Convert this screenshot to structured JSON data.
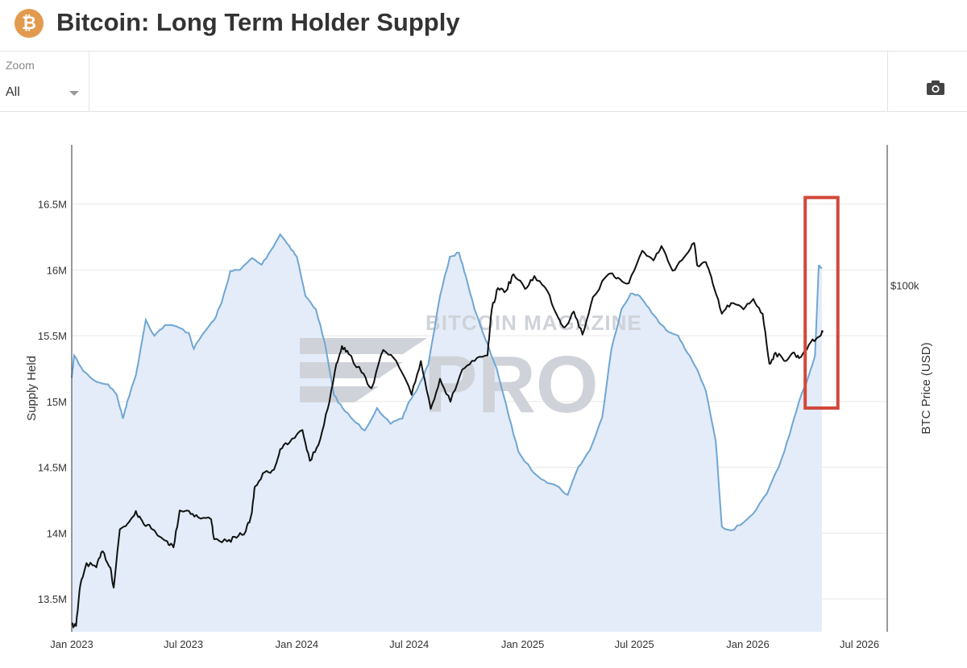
{
  "header": {
    "title": "Bitcoin: Long Term Holder Supply",
    "logo_icon": "bitcoin-logo-icon",
    "logo_glyph": "₿"
  },
  "toolbar": {
    "zoom_label": "Zoom",
    "zoom_value": "All",
    "camera_icon": "camera-icon"
  },
  "watermark": {
    "line1": "BITCOIN MAGAZINE",
    "line2": "PRO"
  },
  "colors": {
    "supply": "#6fa6d4",
    "supply_fill": "#e3ecf8",
    "price": "#111111",
    "highlight": "#d2483a",
    "grid": "#e6e6e6"
  },
  "chart_data": {
    "type": "line",
    "title": "Bitcoin: Long Term Holder Supply",
    "ylabel": "Supply Held",
    "y2label": "BTC Price (USD)",
    "xlim": [
      "2023-01-01",
      "2026-08-15"
    ],
    "ylim": [
      13250000,
      16950000
    ],
    "x_ticks": [
      "Jan 2023",
      "Jul 2023",
      "Jan 2024",
      "Jul 2024",
      "Jan 2025",
      "Jul 2025",
      "Jan 2026",
      "Jul 2026"
    ],
    "y_ticks": [
      {
        "value": 13500000,
        "label": "13.5M"
      },
      {
        "value": 14000000,
        "label": "14M"
      },
      {
        "value": 14500000,
        "label": "14.5M"
      },
      {
        "value": 15000000,
        "label": "15M"
      },
      {
        "value": 15500000,
        "label": "15.5M"
      },
      {
        "value": 16000000,
        "label": "16M"
      },
      {
        "value": 16500000,
        "label": "16.5M"
      }
    ],
    "y2_ticks": [
      {
        "value": 100000,
        "label": "$100k"
      }
    ],
    "y2_scale": "log",
    "y2lim": [
      16000,
      210000
    ],
    "grid": true,
    "legend": "none",
    "series": [
      {
        "name": "Supply Held",
        "axis": "left",
        "style": "area",
        "points": [
          [
            "2023-01-01",
            15180000
          ],
          [
            "2023-01-05",
            15350000
          ],
          [
            "2023-01-20",
            15230000
          ],
          [
            "2023-02-10",
            15150000
          ],
          [
            "2023-03-01",
            15130000
          ],
          [
            "2023-03-15",
            15050000
          ],
          [
            "2023-03-25",
            14870000
          ],
          [
            "2023-04-01",
            15000000
          ],
          [
            "2023-04-15",
            15200000
          ],
          [
            "2023-05-01",
            15620000
          ],
          [
            "2023-05-15",
            15500000
          ],
          [
            "2023-06-01",
            15580000
          ],
          [
            "2023-06-20",
            15570000
          ],
          [
            "2023-07-10",
            15520000
          ],
          [
            "2023-07-18",
            15400000
          ],
          [
            "2023-08-01",
            15510000
          ],
          [
            "2023-08-20",
            15620000
          ],
          [
            "2023-09-01",
            15750000
          ],
          [
            "2023-09-15",
            15990000
          ],
          [
            "2023-10-01",
            16000000
          ],
          [
            "2023-10-20",
            16090000
          ],
          [
            "2023-11-05",
            16040000
          ],
          [
            "2023-11-20",
            16150000
          ],
          [
            "2023-12-05",
            16270000
          ],
          [
            "2023-12-20",
            16180000
          ],
          [
            "2024-01-01",
            16100000
          ],
          [
            "2024-01-15",
            15800000
          ],
          [
            "2024-02-01",
            15700000
          ],
          [
            "2024-02-15",
            15450000
          ],
          [
            "2024-03-01",
            15050000
          ],
          [
            "2024-03-15",
            14950000
          ],
          [
            "2024-04-01",
            14860000
          ],
          [
            "2024-04-20",
            14780000
          ],
          [
            "2024-05-10",
            14950000
          ],
          [
            "2024-06-01",
            14830000
          ],
          [
            "2024-06-20",
            14870000
          ],
          [
            "2024-07-01",
            15000000
          ],
          [
            "2024-07-15",
            15100000
          ],
          [
            "2024-08-01",
            15280000
          ],
          [
            "2024-08-20",
            15800000
          ],
          [
            "2024-09-05",
            16100000
          ],
          [
            "2024-09-20",
            16130000
          ],
          [
            "2024-10-01",
            15950000
          ],
          [
            "2024-10-15",
            15700000
          ],
          [
            "2024-11-01",
            15480000
          ],
          [
            "2024-11-20",
            15250000
          ],
          [
            "2024-12-10",
            14880000
          ],
          [
            "2024-12-25",
            14620000
          ],
          [
            "2025-01-15",
            14480000
          ],
          [
            "2025-02-05",
            14400000
          ],
          [
            "2025-02-25",
            14360000
          ],
          [
            "2025-03-15",
            14290000
          ],
          [
            "2025-04-01",
            14500000
          ],
          [
            "2025-04-20",
            14630000
          ],
          [
            "2025-05-10",
            14880000
          ],
          [
            "2025-05-25",
            15400000
          ],
          [
            "2025-06-10",
            15700000
          ],
          [
            "2025-06-25",
            15820000
          ],
          [
            "2025-07-10",
            15800000
          ],
          [
            "2025-07-25",
            15710000
          ],
          [
            "2025-08-10",
            15600000
          ],
          [
            "2025-08-25",
            15530000
          ],
          [
            "2025-09-10",
            15500000
          ],
          [
            "2025-09-25",
            15370000
          ],
          [
            "2025-10-10",
            15250000
          ],
          [
            "2025-10-25",
            15080000
          ],
          [
            "2025-11-10",
            14700000
          ],
          [
            "2025-11-20",
            14050000
          ],
          [
            "2025-12-05",
            14020000
          ],
          [
            "2025-12-25",
            14080000
          ],
          [
            "2026-01-15",
            14180000
          ],
          [
            "2026-02-01",
            14300000
          ],
          [
            "2026-02-20",
            14500000
          ],
          [
            "2026-03-10",
            14750000
          ],
          [
            "2026-03-25",
            15000000
          ],
          [
            "2026-04-10",
            15200000
          ],
          [
            "2026-04-20",
            15350000
          ],
          [
            "2026-04-26",
            16030000
          ],
          [
            "2026-05-01",
            16020000
          ]
        ]
      },
      {
        "name": "BTC Price (USD)",
        "axis": "right",
        "style": "line",
        "points": [
          [
            "2023-01-01",
            16600
          ],
          [
            "2023-01-08",
            16500
          ],
          [
            "2023-01-15",
            20500
          ],
          [
            "2023-01-25",
            23000
          ],
          [
            "2023-02-10",
            22500
          ],
          [
            "2023-02-20",
            24500
          ],
          [
            "2023-03-05",
            22400
          ],
          [
            "2023-03-10",
            20200
          ],
          [
            "2023-03-20",
            27500
          ],
          [
            "2023-04-01",
            28300
          ],
          [
            "2023-04-15",
            30300
          ],
          [
            "2023-04-25",
            28800
          ],
          [
            "2023-05-10",
            27600
          ],
          [
            "2023-06-05",
            25800
          ],
          [
            "2023-06-15",
            25000
          ],
          [
            "2023-06-25",
            30400
          ],
          [
            "2023-07-10",
            30300
          ],
          [
            "2023-07-25",
            29300
          ],
          [
            "2023-08-15",
            29000
          ],
          [
            "2023-08-20",
            26100
          ],
          [
            "2023-09-10",
            25800
          ],
          [
            "2023-09-25",
            26300
          ],
          [
            "2023-10-10",
            27200
          ],
          [
            "2023-10-20",
            30000
          ],
          [
            "2023-10-25",
            34500
          ],
          [
            "2023-11-10",
            37200
          ],
          [
            "2023-11-25",
            37700
          ],
          [
            "2023-12-05",
            42000
          ],
          [
            "2023-12-20",
            43500
          ],
          [
            "2024-01-10",
            46500
          ],
          [
            "2024-01-22",
            39500
          ],
          [
            "2024-02-05",
            43000
          ],
          [
            "2024-02-20",
            52000
          ],
          [
            "2024-03-05",
            66000
          ],
          [
            "2024-03-14",
            72500
          ],
          [
            "2024-03-25",
            69500
          ],
          [
            "2024-04-15",
            63000
          ],
          [
            "2024-05-01",
            58000
          ],
          [
            "2024-05-20",
            71000
          ],
          [
            "2024-06-10",
            67000
          ],
          [
            "2024-07-05",
            56000
          ],
          [
            "2024-07-20",
            67000
          ],
          [
            "2024-08-05",
            52000
          ],
          [
            "2024-08-20",
            61000
          ],
          [
            "2024-09-06",
            54000
          ],
          [
            "2024-09-25",
            64000
          ],
          [
            "2024-10-15",
            67000
          ],
          [
            "2024-11-05",
            69000
          ],
          [
            "2024-11-12",
            88000
          ],
          [
            "2024-11-22",
            98500
          ],
          [
            "2024-12-05",
            97000
          ],
          [
            "2024-12-17",
            106000
          ],
          [
            "2025-01-05",
            98000
          ],
          [
            "2025-01-20",
            105000
          ],
          [
            "2025-02-10",
            97000
          ],
          [
            "2025-02-28",
            84000
          ],
          [
            "2025-03-10",
            80000
          ],
          [
            "2025-03-25",
            87000
          ],
          [
            "2025-04-08",
            77000
          ],
          [
            "2025-04-25",
            94000
          ],
          [
            "2025-05-20",
            106000
          ],
          [
            "2025-06-05",
            104000
          ],
          [
            "2025-06-22",
            101000
          ],
          [
            "2025-07-14",
            120000
          ],
          [
            "2025-08-01",
            114000
          ],
          [
            "2025-08-14",
            123000
          ],
          [
            "2025-09-01",
            108000
          ],
          [
            "2025-09-20",
            116000
          ],
          [
            "2025-10-06",
            125000
          ],
          [
            "2025-10-11",
            111000
          ],
          [
            "2025-10-25",
            113000
          ],
          [
            "2025-11-05",
            101000
          ],
          [
            "2025-11-20",
            86000
          ],
          [
            "2025-12-05",
            91000
          ],
          [
            "2025-12-25",
            88000
          ],
          [
            "2026-01-10",
            93000
          ],
          [
            "2026-01-25",
            86000
          ],
          [
            "2026-02-05",
            66000
          ],
          [
            "2026-02-15",
            70000
          ],
          [
            "2026-03-01",
            67000
          ],
          [
            "2026-03-15",
            70000
          ],
          [
            "2026-03-25",
            68000
          ],
          [
            "2026-04-10",
            73000
          ],
          [
            "2026-04-25",
            76000
          ],
          [
            "2026-05-03",
            78000
          ]
        ]
      }
    ],
    "annotations": [
      {
        "type": "rectangle",
        "x_start": "2026-04-04",
        "x_end": "2026-05-27",
        "y_start": 14950000,
        "y_end": 16550000,
        "color": "#d2483a"
      }
    ]
  }
}
